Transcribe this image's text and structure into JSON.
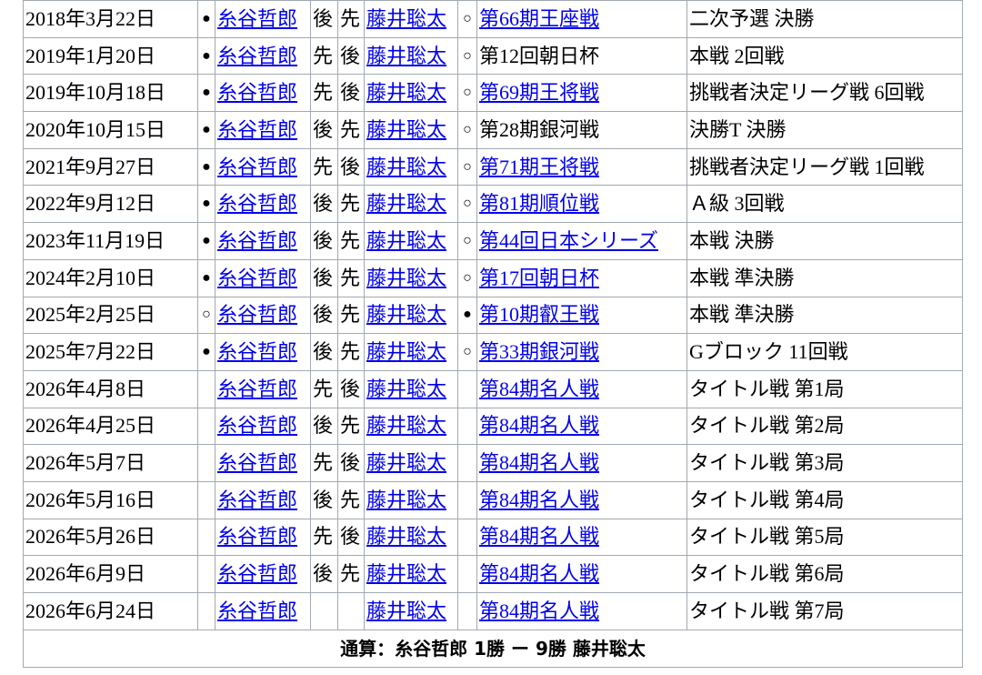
{
  "rows": [
    {
      "date": "2018年3月22日",
      "m1": "●",
      "p1": "糸谷哲郎",
      "s1": "後",
      "s2": "先",
      "p2": "藤井聡太",
      "m2": "○",
      "event": "第66期王座戦",
      "event_link": true,
      "round": "二次予選 決勝"
    },
    {
      "date": "2019年1月20日",
      "m1": "●",
      "p1": "糸谷哲郎",
      "s1": "先",
      "s2": "後",
      "p2": "藤井聡太",
      "m2": "○",
      "event": "第12回朝日杯",
      "event_link": false,
      "round": "本戦 2回戦"
    },
    {
      "date": "2019年10月18日",
      "m1": "●",
      "p1": "糸谷哲郎",
      "s1": "先",
      "s2": "後",
      "p2": "藤井聡太",
      "m2": "○",
      "event": "第69期王将戦",
      "event_link": true,
      "round": "挑戦者決定リーグ戦 6回戦"
    },
    {
      "date": "2020年10月15日",
      "m1": "●",
      "p1": "糸谷哲郎",
      "s1": "後",
      "s2": "先",
      "p2": "藤井聡太",
      "m2": "○",
      "event": "第28期銀河戦",
      "event_link": false,
      "round": "決勝T 決勝"
    },
    {
      "date": "2021年9月27日",
      "m1": "●",
      "p1": "糸谷哲郎",
      "s1": "先",
      "s2": "後",
      "p2": "藤井聡太",
      "m2": "○",
      "event": "第71期王将戦",
      "event_link": true,
      "round": "挑戦者決定リーグ戦 1回戦"
    },
    {
      "date": "2022年9月12日",
      "m1": "●",
      "p1": "糸谷哲郎",
      "s1": "後",
      "s2": "先",
      "p2": "藤井聡太",
      "m2": "○",
      "event": "第81期順位戦",
      "event_link": true,
      "round": "Ａ級 3回戦"
    },
    {
      "date": "2023年11月19日",
      "m1": "●",
      "p1": "糸谷哲郎",
      "s1": "後",
      "s2": "先",
      "p2": "藤井聡太",
      "m2": "○",
      "event": "第44回日本シリーズ",
      "event_link": true,
      "round": "本戦 決勝"
    },
    {
      "date": "2024年2月10日",
      "m1": "●",
      "p1": "糸谷哲郎",
      "s1": "後",
      "s2": "先",
      "p2": "藤井聡太",
      "m2": "○",
      "event": "第17回朝日杯",
      "event_link": true,
      "round": "本戦 準決勝"
    },
    {
      "date": "2025年2月25日",
      "m1": "○",
      "p1": "糸谷哲郎",
      "s1": "後",
      "s2": "先",
      "p2": "藤井聡太",
      "m2": "●",
      "event": "第10期叡王戦",
      "event_link": true,
      "round": "本戦 準決勝"
    },
    {
      "date": "2025年7月22日",
      "m1": "●",
      "p1": "糸谷哲郎",
      "s1": "後",
      "s2": "先",
      "p2": "藤井聡太",
      "m2": "○",
      "event": "第33期銀河戦",
      "event_link": true,
      "round": "Gブロック 11回戦"
    },
    {
      "date": "2026年4月8日",
      "m1": "",
      "p1": "糸谷哲郎",
      "s1": "先",
      "s2": "後",
      "p2": "藤井聡太",
      "m2": "",
      "event": "第84期名人戦",
      "event_link": true,
      "round": "タイトル戦 第1局"
    },
    {
      "date": "2026年4月25日",
      "m1": "",
      "p1": "糸谷哲郎",
      "s1": "後",
      "s2": "先",
      "p2": "藤井聡太",
      "m2": "",
      "event": "第84期名人戦",
      "event_link": true,
      "round": "タイトル戦 第2局"
    },
    {
      "date": "2026年5月7日",
      "m1": "",
      "p1": "糸谷哲郎",
      "s1": "先",
      "s2": "後",
      "p2": "藤井聡太",
      "m2": "",
      "event": "第84期名人戦",
      "event_link": true,
      "round": "タイトル戦 第3局"
    },
    {
      "date": "2026年5月16日",
      "m1": "",
      "p1": "糸谷哲郎",
      "s1": "後",
      "s2": "先",
      "p2": "藤井聡太",
      "m2": "",
      "event": "第84期名人戦",
      "event_link": true,
      "round": "タイトル戦 第4局"
    },
    {
      "date": "2026年5月26日",
      "m1": "",
      "p1": "糸谷哲郎",
      "s1": "先",
      "s2": "後",
      "p2": "藤井聡太",
      "m2": "",
      "event": "第84期名人戦",
      "event_link": true,
      "round": "タイトル戦 第5局"
    },
    {
      "date": "2026年6月9日",
      "m1": "",
      "p1": "糸谷哲郎",
      "s1": "後",
      "s2": "先",
      "p2": "藤井聡太",
      "m2": "",
      "event": "第84期名人戦",
      "event_link": true,
      "round": "タイトル戦 第6局"
    },
    {
      "date": "2026年6月24日",
      "m1": "",
      "p1": "糸谷哲郎",
      "s1": "",
      "s2": "",
      "p2": "藤井聡太",
      "m2": "",
      "event": "第84期名人戦",
      "event_link": true,
      "round": "タイトル戦 第7局"
    }
  ],
  "total": "通算：糸谷哲郎 1勝 ー 9勝 藤井聡太",
  "colors": {
    "link": "#0000ee",
    "border": "#a2a9b1"
  }
}
